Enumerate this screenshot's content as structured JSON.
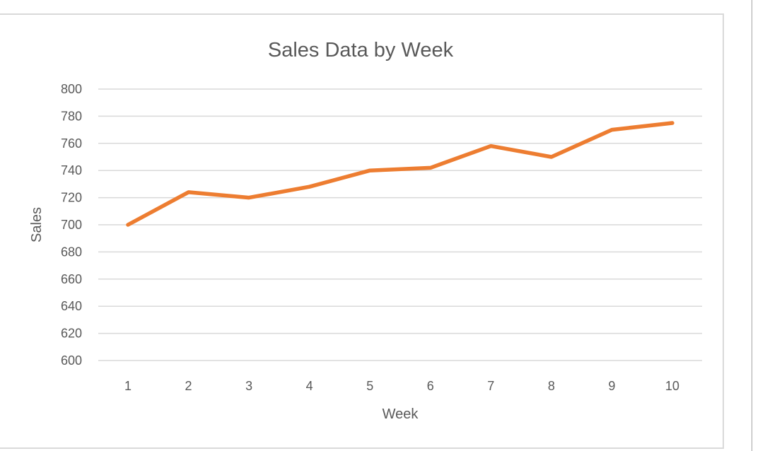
{
  "chart_data": {
    "type": "line",
    "title": "Sales Data by Week",
    "xlabel": "Week",
    "ylabel": "Sales",
    "categories": [
      "1",
      "2",
      "3",
      "4",
      "5",
      "6",
      "7",
      "8",
      "9",
      "10"
    ],
    "x": [
      1,
      2,
      3,
      4,
      5,
      6,
      7,
      8,
      9,
      10
    ],
    "series": [
      {
        "name": "Sales",
        "color": "#ED7D31",
        "values": [
          700,
          724,
          720,
          728,
          740,
          742,
          758,
          750,
          770,
          775
        ]
      }
    ],
    "ylim": [
      600,
      800
    ],
    "yticks": [
      600,
      620,
      640,
      660,
      680,
      700,
      720,
      740,
      760,
      780,
      800
    ],
    "grid": true,
    "legend": "none"
  },
  "colors": {
    "line": "#ED7D31",
    "grid": "#d9d9d9",
    "text": "#595959",
    "border": "#d9d9d9"
  }
}
